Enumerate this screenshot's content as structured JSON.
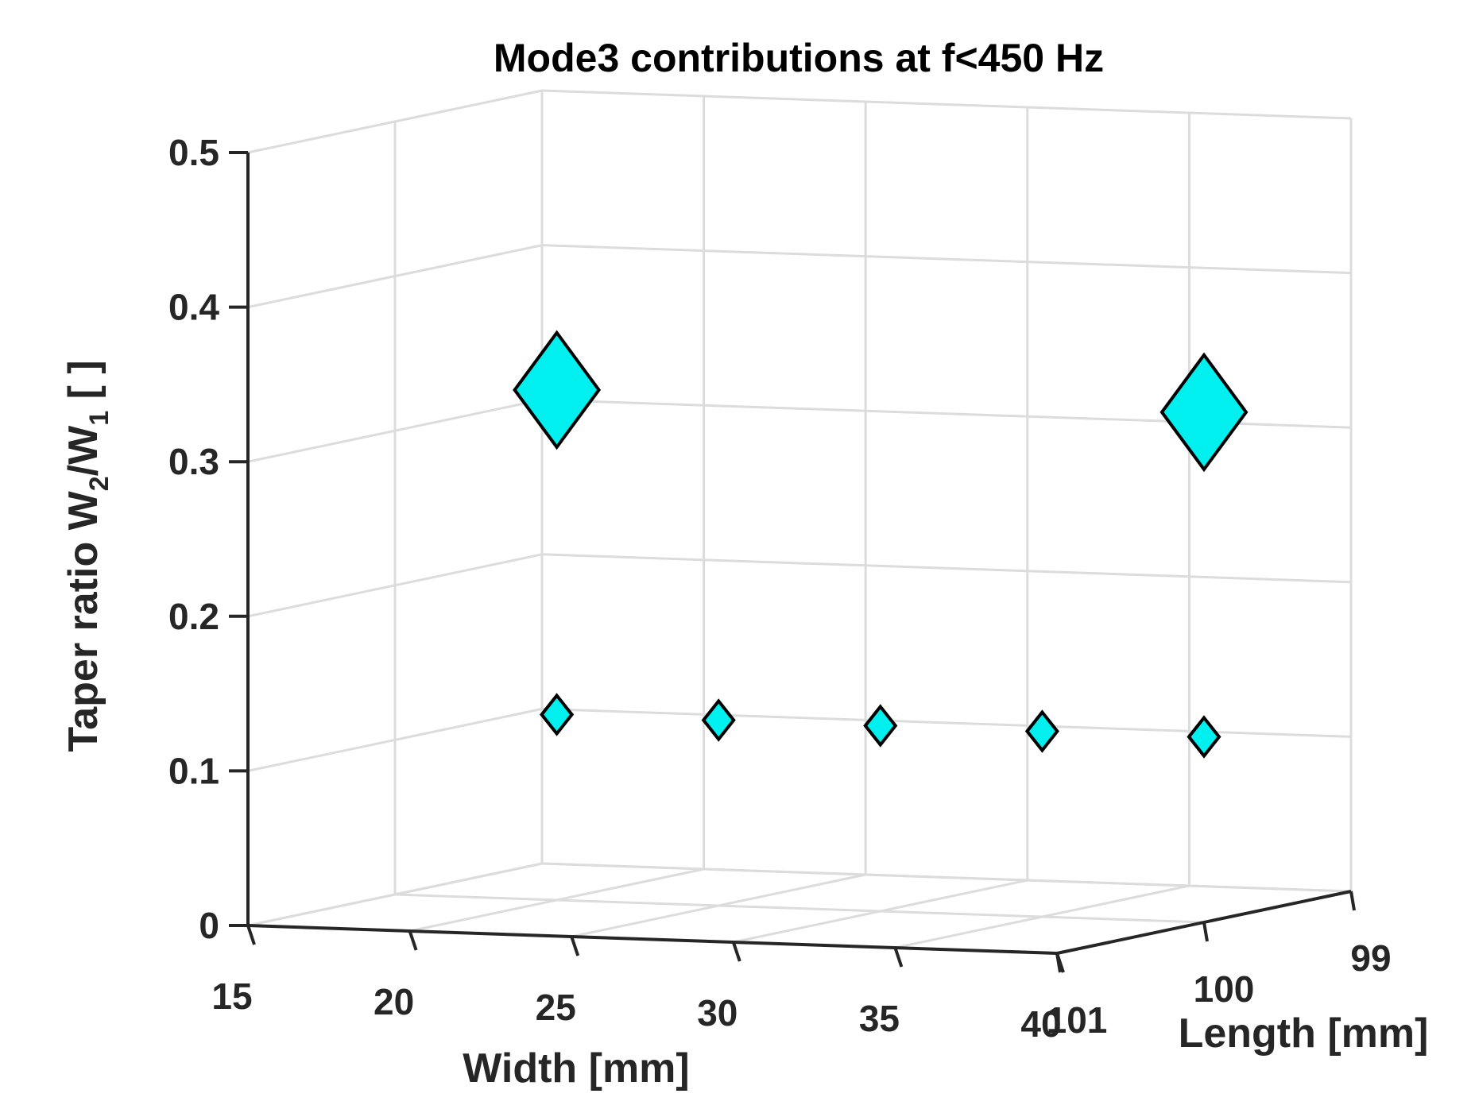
{
  "chart_data": {
    "type": "scatter",
    "title": "Mode3 contributions at f<450 Hz",
    "xlabel": "Width [mm]",
    "ylabel": "Length [mm]",
    "zlabel": {
      "prefix": "Taper ratio W",
      "sub1": "2",
      "mid": "/W",
      "sub2": "1",
      "suffix": " [ ]"
    },
    "x_ticks": [
      "15",
      "20",
      "25",
      "30",
      "35",
      "40"
    ],
    "y_ticks": [
      "101",
      "100",
      "99"
    ],
    "z_ticks": [
      "0",
      "0.1",
      "0.2",
      "0.3",
      "0.4",
      "0.5"
    ],
    "xlim": [
      15,
      40
    ],
    "ylim": [
      99,
      101
    ],
    "zlim": [
      0,
      0.5
    ],
    "grid": true,
    "marker": "diamond",
    "marker_color": "#00f0f0",
    "series": [
      {
        "points": [
          {
            "x": 20,
            "y": 100,
            "z": 0.33,
            "size": "large"
          },
          {
            "x": 40,
            "y": 100,
            "z": 0.33,
            "size": "large"
          },
          {
            "x": 20,
            "y": 100,
            "z": 0.12,
            "size": "small"
          },
          {
            "x": 25,
            "y": 100,
            "z": 0.12,
            "size": "small"
          },
          {
            "x": 30,
            "y": 100,
            "z": 0.12,
            "size": "small"
          },
          {
            "x": 35,
            "y": 100,
            "z": 0.12,
            "size": "small"
          },
          {
            "x": 40,
            "y": 100,
            "z": 0.12,
            "size": "small"
          }
        ]
      }
    ]
  }
}
